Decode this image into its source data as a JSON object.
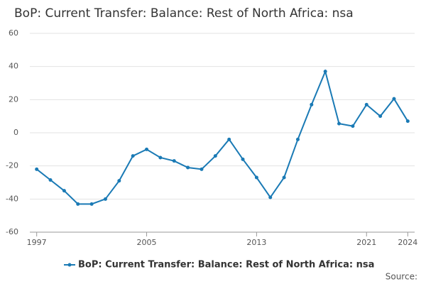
{
  "chart_data": {
    "type": "line",
    "title": "BoP: Current Transfer: Balance: Rest of North Africa: nsa",
    "x": [
      1997,
      1998,
      1999,
      2000,
      2001,
      2002,
      2003,
      2004,
      2005,
      2006,
      2007,
      2008,
      2009,
      2010,
      2011,
      2012,
      2013,
      2014,
      2015,
      2016,
      2017,
      2018,
      2019,
      2020,
      2021,
      2022,
      2023,
      2024
    ],
    "series": [
      {
        "name": "BoP: Current Transfer: Balance: Rest of North Africa: nsa",
        "color": "#1a7ab5",
        "values": [
          -22,
          -28.5,
          -35,
          -43,
          -43,
          -40,
          -29,
          -14,
          -10,
          -15,
          -17,
          -21,
          -22,
          -14,
          -4,
          -16,
          -27,
          -39,
          -27,
          -4,
          17,
          37,
          5.5,
          4,
          17,
          10,
          20.5,
          7
        ]
      }
    ],
    "xlim": [
      1996.5,
      2024.5
    ],
    "xticks": [
      1997,
      2005,
      2013,
      2021,
      2024
    ],
    "ylim": [
      -60,
      60
    ],
    "yticks": [
      -60,
      -40,
      -20,
      0,
      20,
      40,
      60
    ],
    "grid": true,
    "source": "Source:"
  }
}
